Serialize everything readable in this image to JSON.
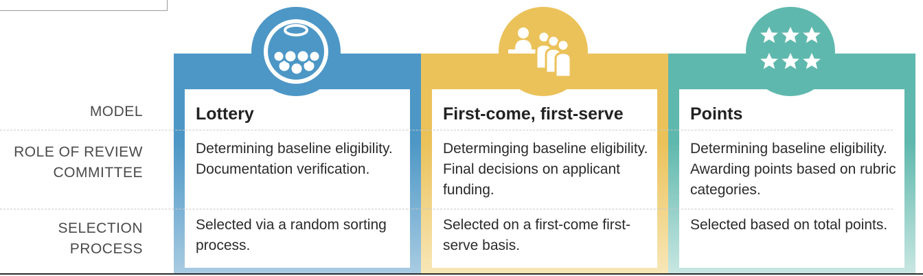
{
  "row_labels": {
    "model": "MODEL",
    "role": "ROLE OF REVIEW\nCOMMITTEE",
    "selection": "SELECTION\nPROCESS"
  },
  "columns": [
    {
      "title": "Lottery",
      "role": "Determining baseline eligibility. Documentation verification.",
      "selection": "Selected via a random sorting process.",
      "icon": "lottery-ball-icon",
      "color": "#4d97c6"
    },
    {
      "title": "First-come, first-serve",
      "role": "Determinging baseline eligibility. Final decisions on applicant funding.",
      "selection": "Selected on a first-come first-serve basis.",
      "icon": "queue-icon",
      "color": "#ebc25a"
    },
    {
      "title": "Points",
      "role": "Determining baseline eligibility. Awarding points based on rubric categories.",
      "selection": "Selected based on total points.",
      "icon": "stars-icon",
      "color": "#5fb8ad"
    }
  ]
}
